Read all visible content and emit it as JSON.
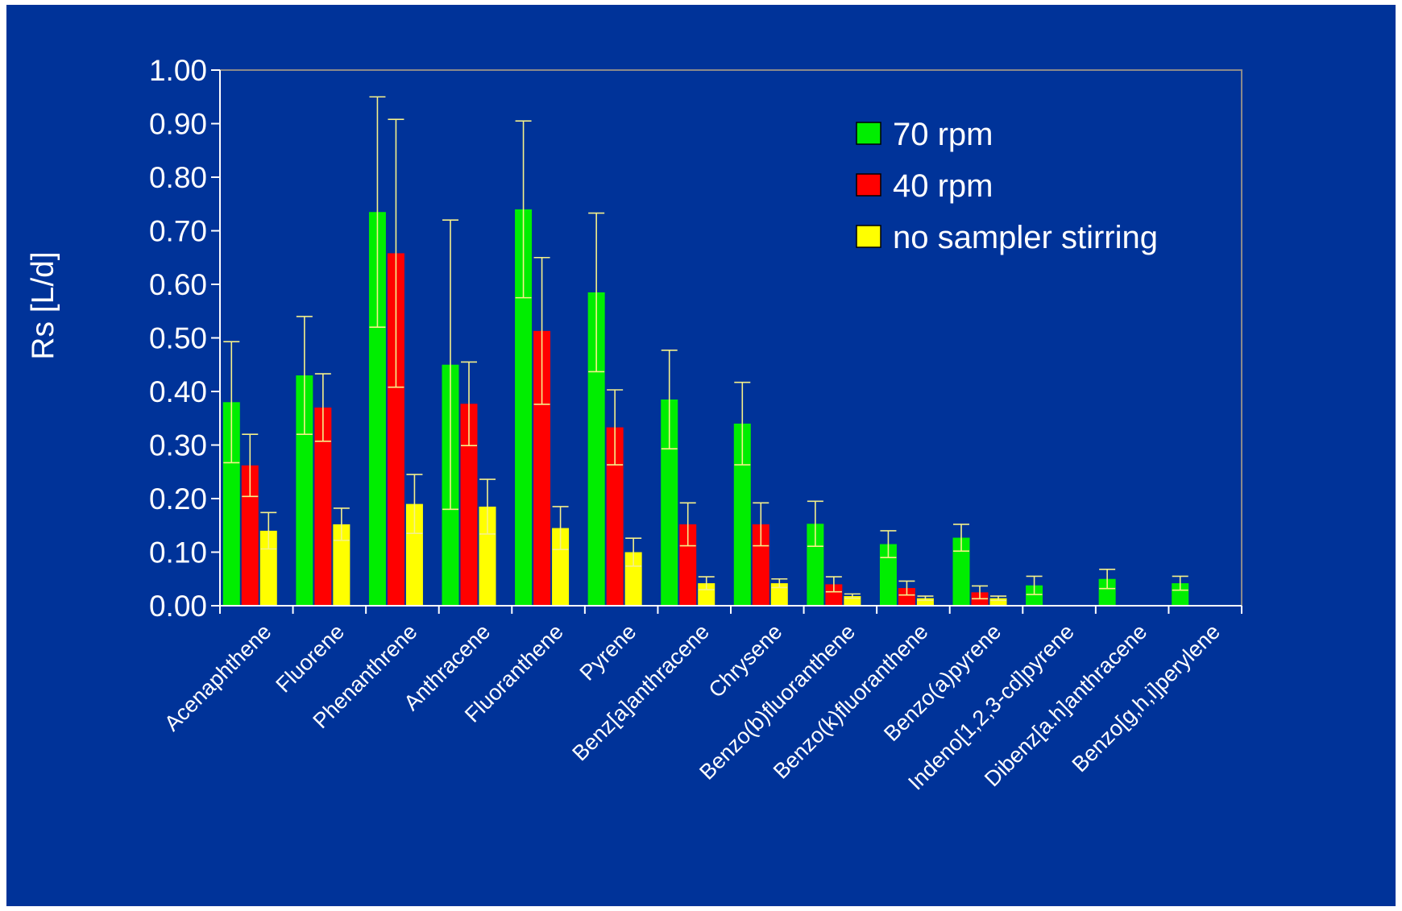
{
  "chart_data": {
    "type": "bar",
    "title": "",
    "xlabel": "",
    "ylabel": "Rs [L/d]",
    "ylim": [
      0,
      1.0
    ],
    "yticks": [
      "0.00",
      "0.10",
      "0.20",
      "0.30",
      "0.40",
      "0.50",
      "0.60",
      "0.70",
      "0.80",
      "0.90",
      "1.00"
    ],
    "grid": false,
    "legend_position": "top-right",
    "colors": {
      "background": "#003399",
      "axis": "#8a8a8a",
      "errorbar": "#f5f08a",
      "text": "#ffffff"
    },
    "categories": [
      "Acenaphthene",
      "Fluorene",
      "Phenanthrene",
      "Anthracene",
      "Fluoranthene",
      "Pyrene",
      "Benz[a]anthracene",
      "Chrysene",
      "Benzo(b)fluoranthene",
      "Benzo(k)fluoranthene",
      "Benzo(a)pyrene",
      "Indeno[1,2,3-cd]pyrene",
      "Dibenz[a.h]anthracene",
      "Benzo[g,h,i]perylene"
    ],
    "series": [
      {
        "name": "70 rpm",
        "color": "#00ee00",
        "values": [
          0.38,
          0.43,
          0.735,
          0.45,
          0.74,
          0.585,
          0.385,
          0.34,
          0.153,
          0.115,
          0.127,
          0.038,
          0.05,
          0.042
        ],
        "errors": [
          0.113,
          0.11,
          0.215,
          0.27,
          0.165,
          0.148,
          0.092,
          0.077,
          0.042,
          0.025,
          0.025,
          0.017,
          0.018,
          0.013
        ]
      },
      {
        "name": "40 rpm",
        "color": "#ff0000",
        "values": [
          0.262,
          0.37,
          0.658,
          0.377,
          0.513,
          0.333,
          0.152,
          0.152,
          0.04,
          0.033,
          0.025,
          null,
          null,
          null
        ],
        "errors": [
          0.058,
          0.063,
          0.25,
          0.078,
          0.137,
          0.07,
          0.04,
          0.04,
          0.014,
          0.013,
          0.012,
          null,
          null,
          null
        ]
      },
      {
        "name": "no sampler stirring",
        "color": "#ffff00",
        "values": [
          0.14,
          0.152,
          0.19,
          0.185,
          0.145,
          0.1,
          0.042,
          0.042,
          0.018,
          0.014,
          0.014,
          null,
          null,
          null
        ],
        "errors": [
          0.034,
          0.03,
          0.055,
          0.051,
          0.04,
          0.026,
          0.012,
          0.008,
          0.004,
          0.004,
          0.004,
          null,
          null,
          null
        ]
      }
    ]
  }
}
